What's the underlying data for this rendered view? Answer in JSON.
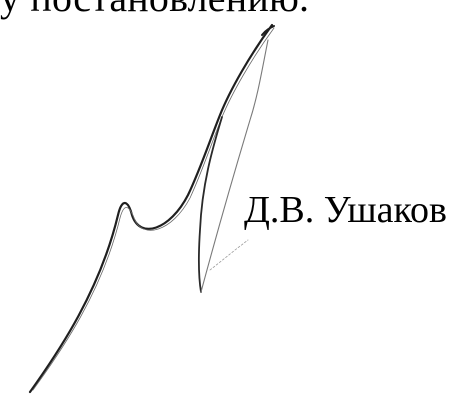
{
  "document": {
    "top_text": "у постановлению.",
    "signer_name": "Д.В. Ушаков"
  },
  "colors": {
    "text": "#000000",
    "signature_ink": "#222222",
    "background": "#ffffff"
  }
}
